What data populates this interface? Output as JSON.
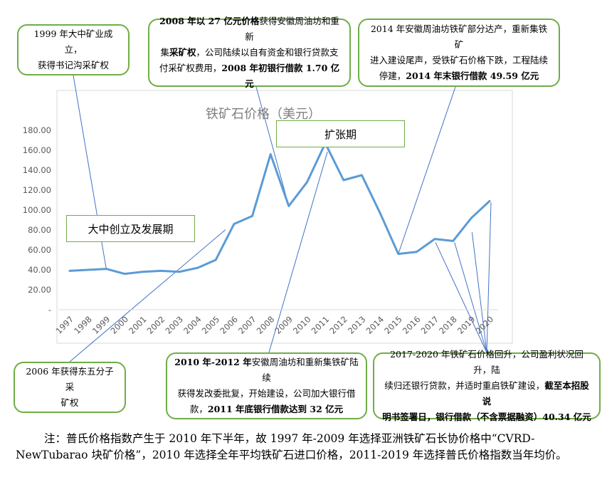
{
  "chart_data": {
    "type": "line",
    "title": "铁矿石价格（美元）",
    "categories": [
      "1997",
      "1998",
      "1999",
      "2000",
      "2001",
      "2002",
      "2003",
      "2004",
      "2005",
      "2006",
      "2007",
      "2008",
      "2009",
      "2010",
      "2011",
      "2012",
      "2013",
      "2014",
      "2015",
      "2016",
      "2017",
      "2018",
      "2019",
      "2020"
    ],
    "values": [
      39,
      40,
      41,
      36,
      38,
      39,
      38,
      42,
      50,
      86,
      94,
      156,
      104,
      128,
      167,
      130,
      135,
      97,
      56,
      58,
      71,
      69,
      92,
      109
    ],
    "yticks": [
      "-",
      "20.00",
      "40.00",
      "60.00",
      "80.00",
      "100.00",
      "120.00",
      "140.00",
      "160.00",
      "180.00"
    ],
    "ylim": [
      0,
      180
    ],
    "line_color": "#5b9bd5",
    "grid": false,
    "phase_labels": {
      "early": "大中创立及发展期",
      "expansion": "扩张期"
    }
  },
  "callouts": {
    "c1999": [
      "1999 年大中矿业成立，",
      "获得书记沟采矿权"
    ],
    "c2008": [
      [
        {
          "t": "2008 年以 27 亿元价格",
          "b": true
        },
        {
          "t": "获得安徽周油坊和重新",
          "b": false
        }
      ],
      [
        {
          "t": "集",
          "b": false
        },
        {
          "t": "采矿权",
          "b": true
        },
        {
          "t": "，公司陆续以自有资金和银行贷款支",
          "b": false
        }
      ],
      [
        {
          "t": "付采矿权费用，",
          "b": false
        },
        {
          "t": "2008 年初银行借款 1.70 亿元",
          "b": true
        }
      ]
    ],
    "c2014": [
      [
        {
          "t": "2014 年安徽周油坊铁矿部分达产，重新集铁矿",
          "b": false
        }
      ],
      [
        {
          "t": "进入建设尾声，受铁矿石价格下跌，工程陆续",
          "b": false
        }
      ],
      [
        {
          "t": "停建，",
          "b": false
        },
        {
          "t": "2014 年末银行借款 49.59 亿元",
          "b": true
        }
      ]
    ],
    "c2006": [
      "2006 年获得东五分子采",
      "矿权"
    ],
    "c2010": [
      [
        {
          "t": "2010 年-2012 年",
          "b": true
        },
        {
          "t": "安徽周油坊和重新集铁矿陆续",
          "b": false
        }
      ],
      [
        {
          "t": "获得发改委批复，开始建设，公司加大银行借",
          "b": false
        }
      ],
      [
        {
          "t": "款，",
          "b": false
        },
        {
          "t": "2011 年底银行借款达到 32 亿元",
          "b": true
        }
      ]
    ],
    "c2017": [
      [
        {
          "t": "2017-2020 年铁矿石价格回升，公司盈利状况回升，陆",
          "b": false
        }
      ],
      [
        {
          "t": "续归还银行贷款，并适时重启铁矿建设，",
          "b": false
        },
        {
          "t": "截至本招股说",
          "b": true
        }
      ],
      [
        {
          "t": "明书签署日，银行借款（不含票据融资）",
          "b": true
        },
        {
          "t": "40.34 亿元",
          "b": true
        }
      ]
    ]
  },
  "footnote": "注：普氏价格指数产生于 2010 年下半年，故 1997 年-2009 年选择亚洲铁矿石长协价格中“CVRD-NewTubarao 块矿价格”，2010 年选择全年平均铁矿石进口价格，2011-2019 年选择普氏价格指数当年均价。"
}
